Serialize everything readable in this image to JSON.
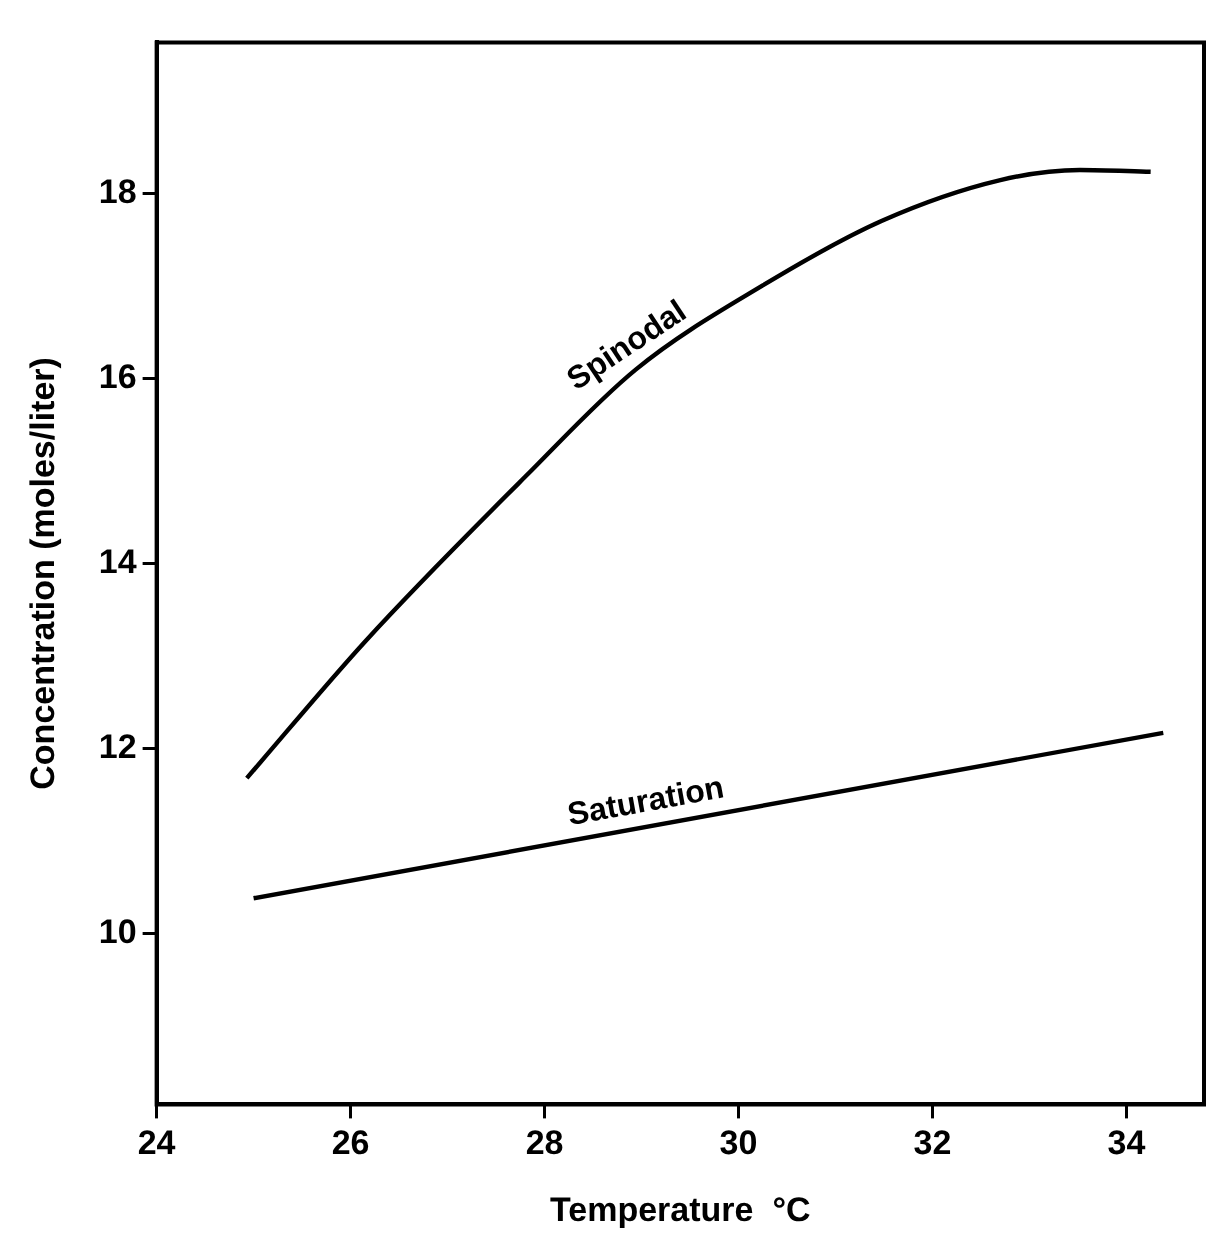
{
  "chart_data": {
    "type": "line",
    "xlabel": "Temperature  °C",
    "ylabel": "Concentration (moles/liter)",
    "xlim": [
      24,
      34.8
    ],
    "ylim": [
      8.15,
      19.64
    ],
    "xticks": [
      24,
      26,
      28,
      30,
      32,
      34
    ],
    "yticks": [
      10,
      12,
      14,
      16,
      18
    ],
    "grid": false,
    "legend": false,
    "marker": "none",
    "line_style": "solid",
    "series": [
      {
        "name": "Spinodal",
        "color": "#000000",
        "x": [
          24.93,
          26.16,
          27.8,
          28.94,
          30.25,
          31.48,
          32.7,
          33.52,
          34.25
        ],
        "values": [
          11.68,
          13.17,
          14.94,
          16.1,
          17.01,
          17.71,
          18.15,
          18.26,
          18.24
        ]
      },
      {
        "name": "Saturation",
        "color": "#000000",
        "x": [
          25.0,
          34.38
        ],
        "values": [
          10.38,
          12.17
        ]
      }
    ]
  }
}
